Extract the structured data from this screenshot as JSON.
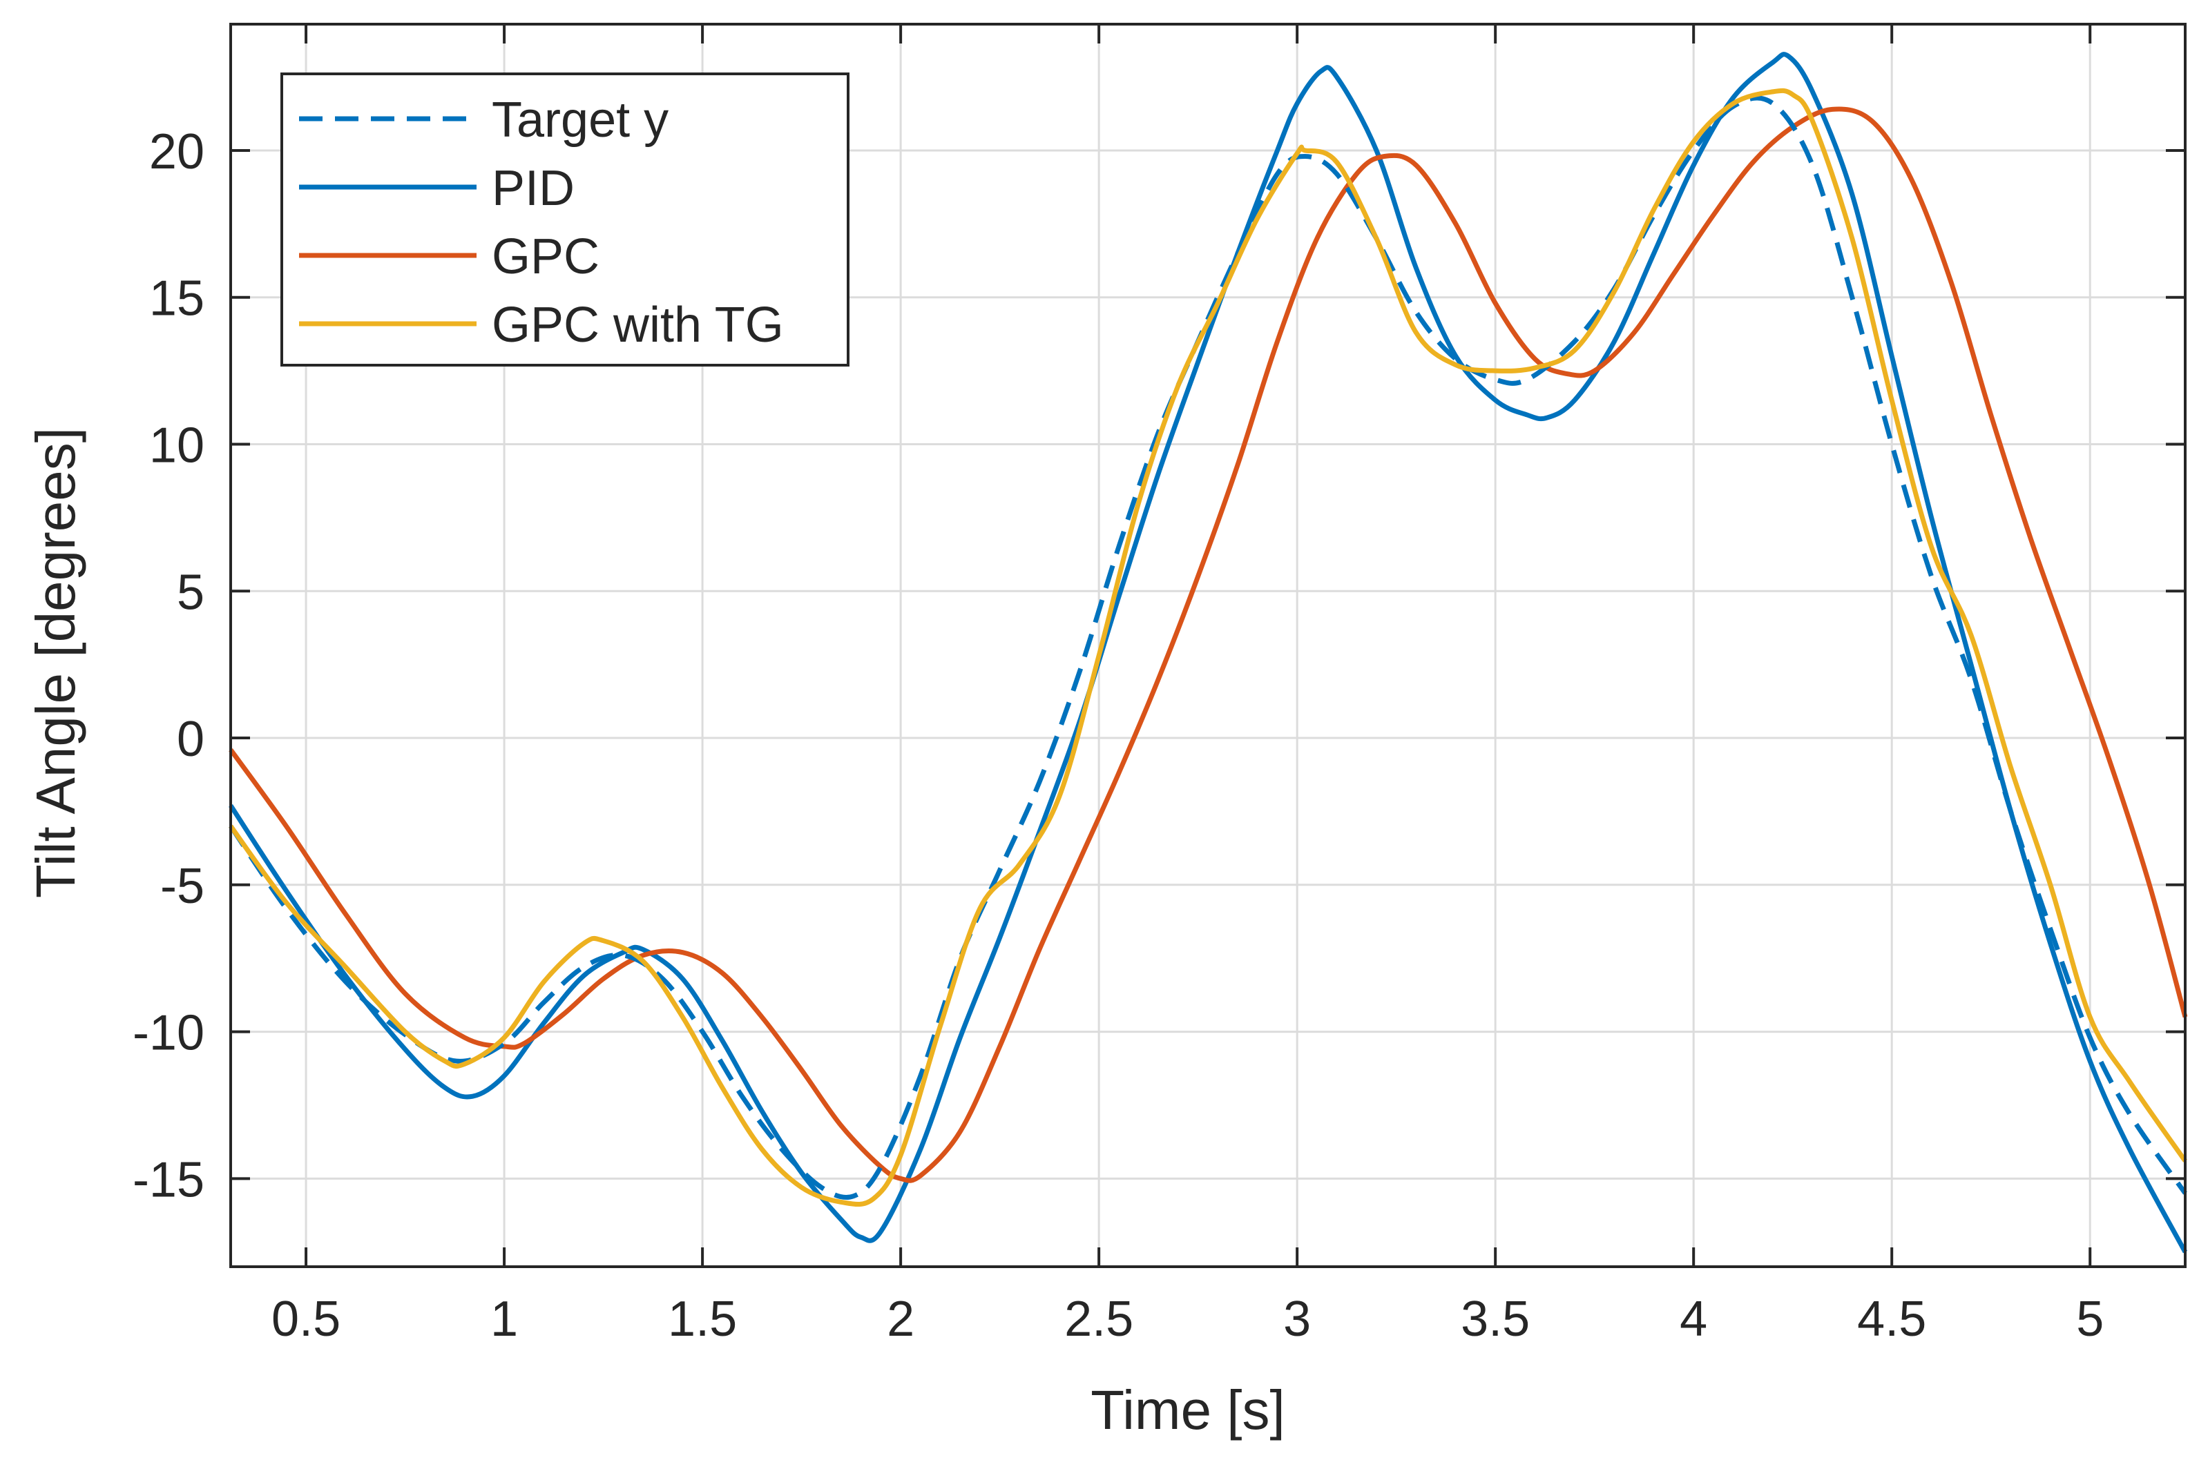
{
  "chart_data": {
    "type": "line",
    "title": "",
    "xlabel": "Time [s]",
    "ylabel": "Tilt Angle [degrees]",
    "xlim": [
      0.31,
      5.24
    ],
    "ylim": [
      -18,
      24.3
    ],
    "grid": true,
    "legend_position": "top-left",
    "xticks": [
      0.5,
      1,
      1.5,
      2,
      2.5,
      3,
      3.5,
      4,
      4.5,
      5
    ],
    "xtick_labels": [
      "0.5",
      "1",
      "1.5",
      "2",
      "2.5",
      "3",
      "3.5",
      "4",
      "4.5",
      "5"
    ],
    "yticks": [
      -15,
      -10,
      -5,
      0,
      5,
      10,
      15,
      20
    ],
    "ytick_labels": [
      "-15",
      "-10",
      "-5",
      "0",
      "5",
      "10",
      "15",
      "20"
    ],
    "series": [
      {
        "name": "Target y",
        "color": "#0072BD",
        "style": "dashed",
        "x": [
          0.31,
          0.45,
          0.6,
          0.75,
          0.88,
          1.0,
          1.1,
          1.2,
          1.3,
          1.4,
          1.5,
          1.6,
          1.7,
          1.8,
          1.88,
          1.95,
          2.05,
          2.15,
          2.25,
          2.35,
          2.45,
          2.55,
          2.65,
          2.75,
          2.85,
          2.95,
          3.02,
          3.1,
          3.2,
          3.3,
          3.4,
          3.5,
          3.58,
          3.7,
          3.8,
          3.9,
          4.0,
          4.1,
          4.2,
          4.3,
          4.4,
          4.5,
          4.6,
          4.7,
          4.8,
          4.9,
          5.0,
          5.1,
          5.24
        ],
        "y": [
          -3.0,
          -5.8,
          -8.3,
          -10.1,
          -11.0,
          -10.4,
          -9.0,
          -7.8,
          -7.4,
          -8.2,
          -10.0,
          -12.2,
          -14.0,
          -15.3,
          -15.6,
          -14.6,
          -11.5,
          -7.5,
          -4.5,
          -1.5,
          2.2,
          6.5,
          10.4,
          13.5,
          16.5,
          19.2,
          19.8,
          19.2,
          17.0,
          14.5,
          12.9,
          12.2,
          12.2,
          13.5,
          15.3,
          17.8,
          20.0,
          21.5,
          21.6,
          19.5,
          15.0,
          10.0,
          5.5,
          2.0,
          -2.5,
          -6.5,
          -10.2,
          -12.8,
          -15.5
        ]
      },
      {
        "name": "PID",
        "color": "#0072BD",
        "style": "solid",
        "x": [
          0.31,
          0.45,
          0.6,
          0.75,
          0.85,
          0.92,
          1.0,
          1.1,
          1.2,
          1.3,
          1.35,
          1.45,
          1.55,
          1.65,
          1.75,
          1.85,
          1.9,
          1.95,
          2.05,
          2.15,
          2.25,
          2.35,
          2.45,
          2.55,
          2.65,
          2.75,
          2.85,
          2.95,
          3.0,
          3.06,
          3.1,
          3.2,
          3.3,
          3.4,
          3.5,
          3.58,
          3.63,
          3.7,
          3.8,
          3.9,
          4.0,
          4.1,
          4.2,
          4.24,
          4.3,
          4.4,
          4.5,
          4.6,
          4.7,
          4.8,
          4.9,
          5.0,
          5.1,
          5.24
        ],
        "y": [
          -2.3,
          -5.2,
          -8.1,
          -10.6,
          -11.9,
          -12.2,
          -11.5,
          -9.7,
          -8.1,
          -7.3,
          -7.2,
          -8.2,
          -10.3,
          -12.7,
          -14.8,
          -16.4,
          -17.0,
          -16.8,
          -14.0,
          -10.2,
          -6.8,
          -3.2,
          0.5,
          4.8,
          9.0,
          12.8,
          16.5,
          20.0,
          21.6,
          22.7,
          22.5,
          20.0,
          16.0,
          13.0,
          11.5,
          11.0,
          10.9,
          11.5,
          13.5,
          16.5,
          19.5,
          21.8,
          23.0,
          23.2,
          22.0,
          18.5,
          13.0,
          7.5,
          2.5,
          -2.5,
          -7.0,
          -11.0,
          -14.0,
          -17.5
        ]
      },
      {
        "name": "GPC",
        "color": "#D95319",
        "style": "solid",
        "x": [
          0.31,
          0.45,
          0.6,
          0.75,
          0.9,
          1.0,
          1.05,
          1.15,
          1.25,
          1.35,
          1.45,
          1.55,
          1.65,
          1.75,
          1.85,
          1.95,
          2.0,
          2.05,
          2.15,
          2.25,
          2.35,
          2.45,
          2.55,
          2.65,
          2.75,
          2.85,
          2.95,
          3.05,
          3.15,
          3.22,
          3.3,
          3.4,
          3.5,
          3.6,
          3.68,
          3.75,
          3.85,
          3.95,
          4.05,
          4.15,
          4.25,
          4.35,
          4.45,
          4.55,
          4.65,
          4.75,
          4.85,
          4.95,
          5.05,
          5.15,
          5.24
        ],
        "y": [
          -0.4,
          -3.0,
          -6.0,
          -8.7,
          -10.2,
          -10.5,
          -10.4,
          -9.4,
          -8.2,
          -7.4,
          -7.3,
          -8.0,
          -9.5,
          -11.3,
          -13.2,
          -14.6,
          -15.0,
          -14.9,
          -13.4,
          -10.5,
          -7.2,
          -4.2,
          -1.2,
          2.0,
          5.5,
          9.3,
          13.5,
          17.0,
          19.2,
          19.8,
          19.5,
          17.5,
          14.8,
          12.9,
          12.4,
          12.5,
          13.8,
          15.8,
          17.8,
          19.6,
          20.8,
          21.4,
          21.0,
          19.0,
          15.5,
          11.0,
          6.8,
          3.0,
          -0.8,
          -5.0,
          -9.5
        ]
      },
      {
        "name": "GPC with TG",
        "color": "#EDB120",
        "style": "solid",
        "x": [
          0.31,
          0.45,
          0.6,
          0.75,
          0.85,
          0.9,
          1.0,
          1.1,
          1.2,
          1.25,
          1.35,
          1.45,
          1.55,
          1.65,
          1.75,
          1.85,
          1.93,
          2.0,
          2.1,
          2.2,
          2.3,
          2.4,
          2.5,
          2.6,
          2.7,
          2.8,
          2.9,
          3.0,
          3.02,
          3.1,
          3.2,
          3.3,
          3.4,
          3.5,
          3.6,
          3.7,
          3.8,
          3.9,
          4.0,
          4.1,
          4.2,
          4.25,
          4.3,
          4.4,
          4.5,
          4.6,
          4.7,
          4.8,
          4.9,
          5.0,
          5.1,
          5.24
        ],
        "y": [
          -3.0,
          -5.6,
          -7.8,
          -10.0,
          -11.0,
          -11.1,
          -10.2,
          -8.3,
          -7.0,
          -6.9,
          -7.6,
          -9.5,
          -11.9,
          -14.0,
          -15.3,
          -15.8,
          -15.7,
          -14.2,
          -9.8,
          -5.8,
          -4.3,
          -2.0,
          2.8,
          8.0,
          12.0,
          14.8,
          17.7,
          19.9,
          20.0,
          19.6,
          17.0,
          13.8,
          12.7,
          12.5,
          12.6,
          13.2,
          15.2,
          18.0,
          20.3,
          21.6,
          22.0,
          21.9,
          21.0,
          17.0,
          11.5,
          6.5,
          3.5,
          -1.0,
          -5.0,
          -9.5,
          -11.7,
          -14.4
        ]
      }
    ]
  }
}
